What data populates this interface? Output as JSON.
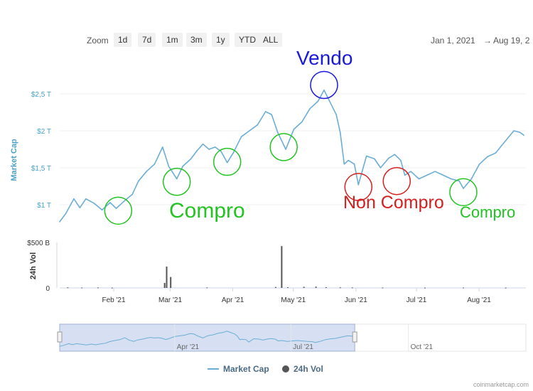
{
  "toolbar": {
    "zoom_label": "Zoom",
    "buttons": [
      "1d",
      "7d",
      "1m",
      "3m",
      "1y",
      "YTD",
      "ALL"
    ],
    "range_from": "Jan 1, 2021",
    "range_arrow": "→",
    "range_to": "Aug 19, 2"
  },
  "annotations": {
    "sell": "Vendo",
    "buy_1": "Compro",
    "no_buy": "Non Compro",
    "buy_2": "Compro"
  },
  "colors": {
    "line": "#6aaed6",
    "axis_label": "#47a3c9",
    "sell": "#1a1adb",
    "buy": "#22c422",
    "no_buy": "#d42020",
    "volume": "#555555",
    "navigator_fill": "#c9d6ee"
  },
  "legend": {
    "market_cap": "Market Cap",
    "volume": "24h Vol"
  },
  "credit": "coinmarketcap.com",
  "chart_data": {
    "type": "line",
    "title": "",
    "ylabel": "Market Cap",
    "ylabel2": "24h Vol",
    "y_ticks": [
      "$1 T",
      "$1,5 T",
      "$2 T",
      "$2,5 T"
    ],
    "y2_ticks": [
      "0",
      "$500 B"
    ],
    "x_ticks": [
      "Feb '21",
      "Mar '21",
      "Apr '21",
      "May '21",
      "Jun '21",
      "Jul '21",
      "Aug '21"
    ],
    "navigator_ticks": [
      "Apr '21",
      "Jul '21",
      "Oct '21"
    ],
    "series": [
      {
        "name": "Market Cap",
        "unit": "T USD",
        "points": [
          [
            "2021-01-01",
            0.77
          ],
          [
            "2021-01-04",
            0.88
          ],
          [
            "2021-01-08",
            1.08
          ],
          [
            "2021-01-11",
            0.96
          ],
          [
            "2021-01-14",
            1.08
          ],
          [
            "2021-01-18",
            1.02
          ],
          [
            "2021-01-22",
            0.93
          ],
          [
            "2021-01-26",
            1.03
          ],
          [
            "2021-01-29",
            0.95
          ],
          [
            "2021-02-02",
            1.05
          ],
          [
            "2021-02-06",
            1.14
          ],
          [
            "2021-02-09",
            1.32
          ],
          [
            "2021-02-13",
            1.45
          ],
          [
            "2021-02-17",
            1.55
          ],
          [
            "2021-02-21",
            1.78
          ],
          [
            "2021-02-24",
            1.52
          ],
          [
            "2021-02-28",
            1.35
          ],
          [
            "2021-03-03",
            1.52
          ],
          [
            "2021-03-07",
            1.62
          ],
          [
            "2021-03-10",
            1.73
          ],
          [
            "2021-03-13",
            1.82
          ],
          [
            "2021-03-16",
            1.75
          ],
          [
            "2021-03-19",
            1.78
          ],
          [
            "2021-03-22",
            1.72
          ],
          [
            "2021-03-25",
            1.57
          ],
          [
            "2021-03-28",
            1.7
          ],
          [
            "2021-04-01",
            1.92
          ],
          [
            "2021-04-05",
            2.0
          ],
          [
            "2021-04-09",
            2.08
          ],
          [
            "2021-04-13",
            2.26
          ],
          [
            "2021-04-16",
            2.22
          ],
          [
            "2021-04-19",
            1.98
          ],
          [
            "2021-04-23",
            1.75
          ],
          [
            "2021-04-27",
            2.02
          ],
          [
            "2021-05-01",
            2.12
          ],
          [
            "2021-05-05",
            2.3
          ],
          [
            "2021-05-09",
            2.4
          ],
          [
            "2021-05-12",
            2.55
          ],
          [
            "2021-05-14",
            2.44
          ],
          [
            "2021-05-18",
            2.22
          ],
          [
            "2021-05-20",
            1.98
          ],
          [
            "2021-05-22",
            1.55
          ],
          [
            "2021-05-24",
            1.6
          ],
          [
            "2021-05-27",
            1.55
          ],
          [
            "2021-05-29",
            1.27
          ],
          [
            "2021-06-02",
            1.66
          ],
          [
            "2021-06-06",
            1.62
          ],
          [
            "2021-06-09",
            1.5
          ],
          [
            "2021-06-13",
            1.63
          ],
          [
            "2021-06-16",
            1.68
          ],
          [
            "2021-06-19",
            1.6
          ],
          [
            "2021-06-21",
            1.4
          ],
          [
            "2021-06-24",
            1.45
          ],
          [
            "2021-06-28",
            1.35
          ],
          [
            "2021-07-02",
            1.4
          ],
          [
            "2021-07-06",
            1.45
          ],
          [
            "2021-07-10",
            1.4
          ],
          [
            "2021-07-14",
            1.35
          ],
          [
            "2021-07-18",
            1.32
          ],
          [
            "2021-07-20",
            1.22
          ],
          [
            "2021-07-24",
            1.35
          ],
          [
            "2021-07-28",
            1.55
          ],
          [
            "2021-08-01",
            1.65
          ],
          [
            "2021-08-05",
            1.7
          ],
          [
            "2021-08-08",
            1.8
          ],
          [
            "2021-08-11",
            1.9
          ],
          [
            "2021-08-14",
            2.0
          ],
          [
            "2021-08-17",
            1.98
          ],
          [
            "2021-08-19",
            1.94
          ]
        ]
      },
      {
        "name": "24h Vol",
        "unit": "B USD",
        "points": [
          [
            "2021-01-05",
            6
          ],
          [
            "2021-01-12",
            4
          ],
          [
            "2021-01-20",
            5
          ],
          [
            "2021-01-27",
            3
          ],
          [
            "2021-02-22",
            55
          ],
          [
            "2021-02-23",
            235
          ],
          [
            "2021-02-25",
            120
          ],
          [
            "2021-03-15",
            5
          ],
          [
            "2021-04-18",
            10
          ],
          [
            "2021-04-21",
            460
          ],
          [
            "2021-04-24",
            8
          ],
          [
            "2021-05-02",
            12
          ],
          [
            "2021-05-08",
            14
          ],
          [
            "2021-05-13",
            8
          ],
          [
            "2021-05-20",
            6
          ],
          [
            "2021-05-26",
            5
          ],
          [
            "2021-06-10",
            4
          ],
          [
            "2021-07-01",
            3
          ],
          [
            "2021-07-20",
            4
          ],
          [
            "2021-08-10",
            3
          ]
        ]
      }
    ],
    "highlight_circles": [
      {
        "label": "buy",
        "date": "2021-01-30",
        "value": 0.92
      },
      {
        "label": "buy",
        "date": "2021-02-28",
        "value": 1.31
      },
      {
        "label": "buy",
        "date": "2021-03-25",
        "value": 1.58
      },
      {
        "label": "buy",
        "date": "2021-04-22",
        "value": 1.78
      },
      {
        "label": "sell",
        "date": "2021-05-12",
        "value": 2.62
      },
      {
        "label": "no_buy",
        "date": "2021-05-29",
        "value": 1.24
      },
      {
        "label": "no_buy",
        "date": "2021-06-17",
        "value": 1.32
      },
      {
        "label": "buy",
        "date": "2021-07-20",
        "value": 1.17
      }
    ]
  }
}
